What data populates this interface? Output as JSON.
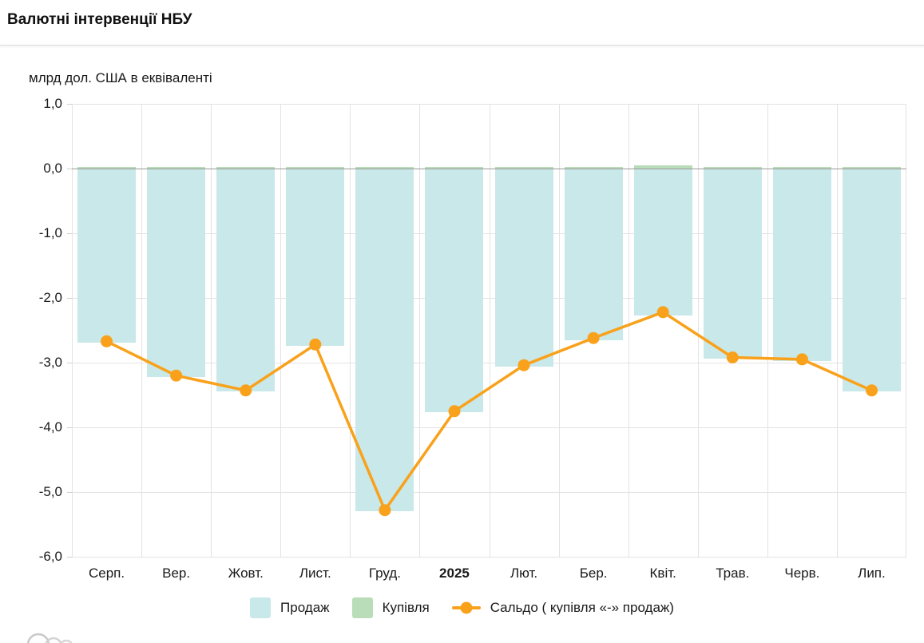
{
  "page": {
    "title": "Валютні інтервенції НБУ"
  },
  "chart": {
    "units_label": "млрд дол. США в еквіваленті"
  },
  "chart_data": {
    "type": "bar",
    "title": "Валютні інтервенції НБУ",
    "ylabel": "млрд дол. США в еквіваленті",
    "categories": [
      "Серп.",
      "Вер.",
      "Жовт.",
      "Лист.",
      "Груд.",
      "2025",
      "Лют.",
      "Бер.",
      "Квіт.",
      "Трав.",
      "Черв.",
      "Лип."
    ],
    "emphasized_category": "2025",
    "series": [
      {
        "name": "Продаж",
        "type": "bar",
        "color": "#c9e8e9",
        "values": [
          -2.69,
          -3.22,
          -3.45,
          -2.74,
          -5.3,
          -3.77,
          -3.06,
          -2.65,
          -2.27,
          -2.94,
          -2.97,
          -3.45
        ]
      },
      {
        "name": "Купівля",
        "type": "bar",
        "color": "#b9dcb9",
        "values": [
          0.02,
          0.02,
          0.02,
          0.02,
          0.02,
          0.02,
          0.02,
          0.03,
          0.05,
          0.02,
          0.02,
          0.02
        ]
      },
      {
        "name": "Сальдо ( купівля «-» продаж)",
        "type": "line",
        "color": "#f9a11b",
        "values": [
          -2.67,
          -3.2,
          -3.43,
          -2.72,
          -5.28,
          -3.75,
          -3.04,
          -2.62,
          -2.22,
          -2.92,
          -2.95,
          -3.43
        ]
      }
    ],
    "ylim": [
      -6,
      1
    ],
    "yticks": [
      {
        "v": 1,
        "label": "1,0"
      },
      {
        "v": 0,
        "label": "0,0"
      },
      {
        "v": -1,
        "label": "-1,0"
      },
      {
        "v": -2,
        "label": "-2,0"
      },
      {
        "v": -3,
        "label": "-3,0"
      },
      {
        "v": -4,
        "label": "-4,0"
      },
      {
        "v": -5,
        "label": "-5,0"
      },
      {
        "v": -6,
        "label": "-6,0"
      }
    ],
    "grid": true,
    "gridline_color": "#e3e3e3",
    "zero_line_color": "#9b9b9b",
    "legend_position": "bottom"
  },
  "legend": {
    "items": [
      {
        "label": "Продаж",
        "marker": "square",
        "color": "#c9e8e9"
      },
      {
        "label": "Купівля",
        "marker": "square",
        "color": "#b9dcb9"
      },
      {
        "label": "Сальдо ( купівля «-» продаж)",
        "marker": "line-dot",
        "color": "#f9a11b"
      }
    ]
  }
}
